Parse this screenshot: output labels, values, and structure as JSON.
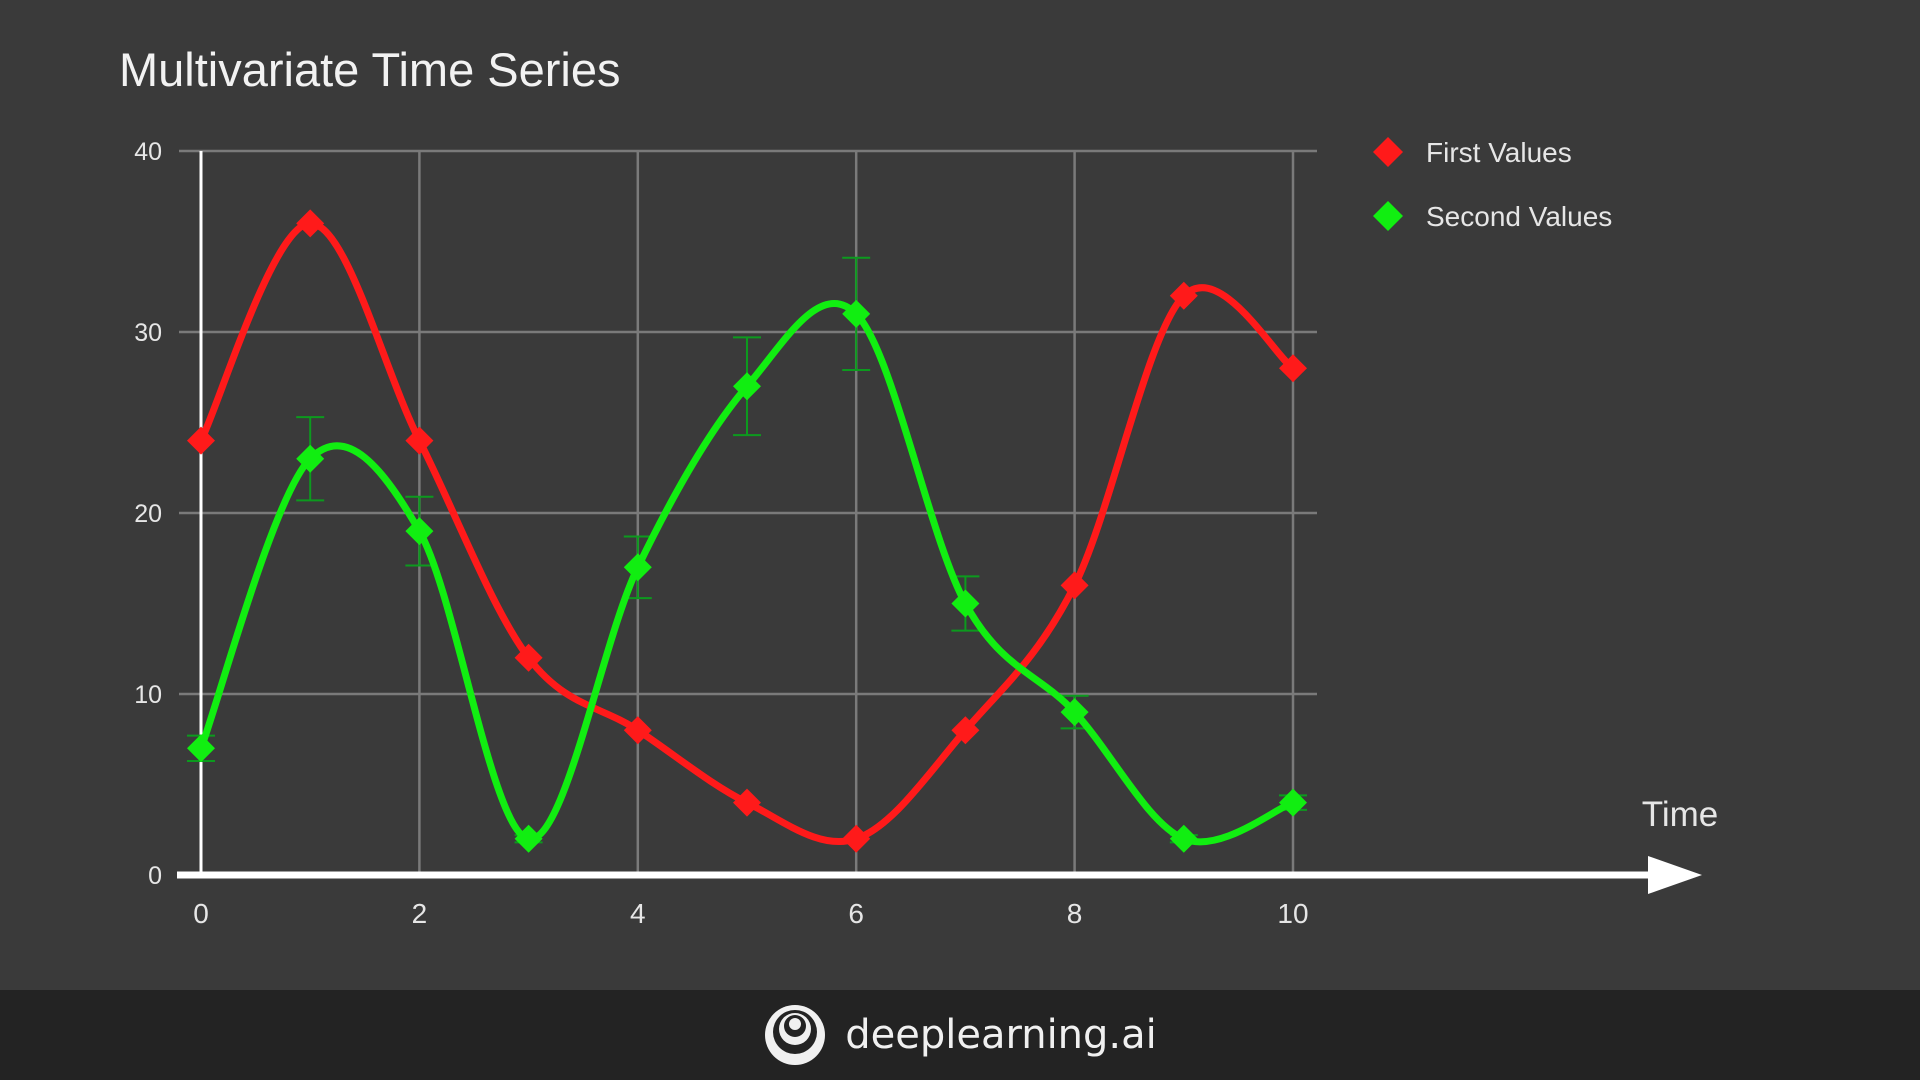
{
  "chart_data": {
    "type": "line",
    "title": "Multivariate Time Series",
    "xlabel": "Time",
    "ylabel": "",
    "x": [
      0,
      1,
      2,
      3,
      4,
      5,
      6,
      7,
      8,
      9,
      10
    ],
    "xlim": [
      0,
      10
    ],
    "ylim": [
      0,
      40
    ],
    "x_ticks": [
      "0",
      "2",
      "4",
      "6",
      "8",
      "10"
    ],
    "y_ticks": [
      "0",
      "10",
      "20",
      "30",
      "40"
    ],
    "grid": true,
    "smooth": true,
    "legend_position": "top-right",
    "series": [
      {
        "name": "First Values",
        "color": "#ff1a1a",
        "marker": "diamond",
        "values": [
          24,
          36,
          24,
          12,
          8,
          4,
          2,
          8,
          16,
          32,
          28
        ]
      },
      {
        "name": "Second Values",
        "color": "#11ee11",
        "marker": "diamond",
        "values": [
          7,
          23,
          19,
          2,
          17,
          27,
          31,
          15,
          9,
          2,
          4
        ],
        "error": [
          0.7,
          2.3,
          1.9,
          0.2,
          1.7,
          2.7,
          3.1,
          1.5,
          0.9,
          0.2,
          0.4
        ]
      }
    ]
  },
  "footer": {
    "brand_text": "deeplearning.ai",
    "logo_icon": "deeplearning-logo-icon"
  },
  "colors": {
    "background": "#3a3a3a",
    "footer_background": "#232323",
    "grid": "#7a7a7a",
    "axis": "#ffffff"
  }
}
